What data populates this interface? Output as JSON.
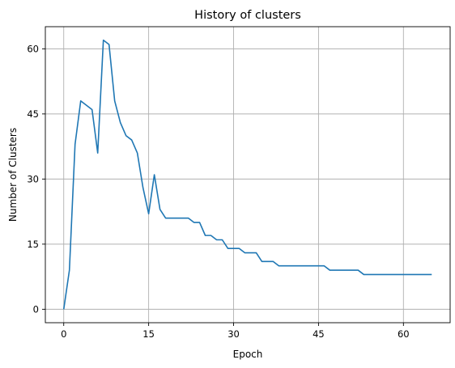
{
  "chart_data": {
    "type": "line",
    "title": "History of clusters",
    "xlabel": "Epoch",
    "ylabel": "Number of Clusters",
    "xlim": [
      -3.25,
      68.25
    ],
    "ylim": [
      -3.1,
      65.1
    ],
    "xticks": [
      0,
      15,
      30,
      45,
      60
    ],
    "yticks": [
      0,
      15,
      30,
      45,
      60
    ],
    "grid": true,
    "line_color": "#1f77b4",
    "series": [
      {
        "x": [
          0,
          1,
          2,
          3,
          4,
          5,
          6,
          7,
          8,
          9,
          10,
          11,
          12,
          13,
          14,
          15,
          16,
          17,
          18,
          19,
          20,
          21,
          22,
          23,
          24,
          25,
          26,
          27,
          28,
          29,
          30,
          31,
          32,
          33,
          34,
          35,
          36,
          37,
          38,
          39,
          40,
          41,
          42,
          43,
          44,
          45,
          46,
          47,
          48,
          49,
          50,
          51,
          52,
          53,
          54,
          55,
          56,
          57,
          58,
          59,
          60,
          61,
          62,
          63,
          64,
          65
        ],
        "values": [
          0,
          9,
          38,
          48,
          47,
          46,
          36,
          62,
          61,
          48,
          43,
          40,
          39,
          36,
          28,
          22,
          31,
          23,
          21,
          21,
          21,
          21,
          21,
          20,
          20,
          17,
          17,
          16,
          16,
          14,
          14,
          14,
          13,
          13,
          13,
          11,
          11,
          11,
          10,
          10,
          10,
          10,
          10,
          10,
          10,
          10,
          10,
          9,
          9,
          9,
          9,
          9,
          9,
          8,
          8,
          8,
          8,
          8,
          8,
          8,
          8,
          8,
          8,
          8,
          8,
          8
        ]
      }
    ]
  }
}
